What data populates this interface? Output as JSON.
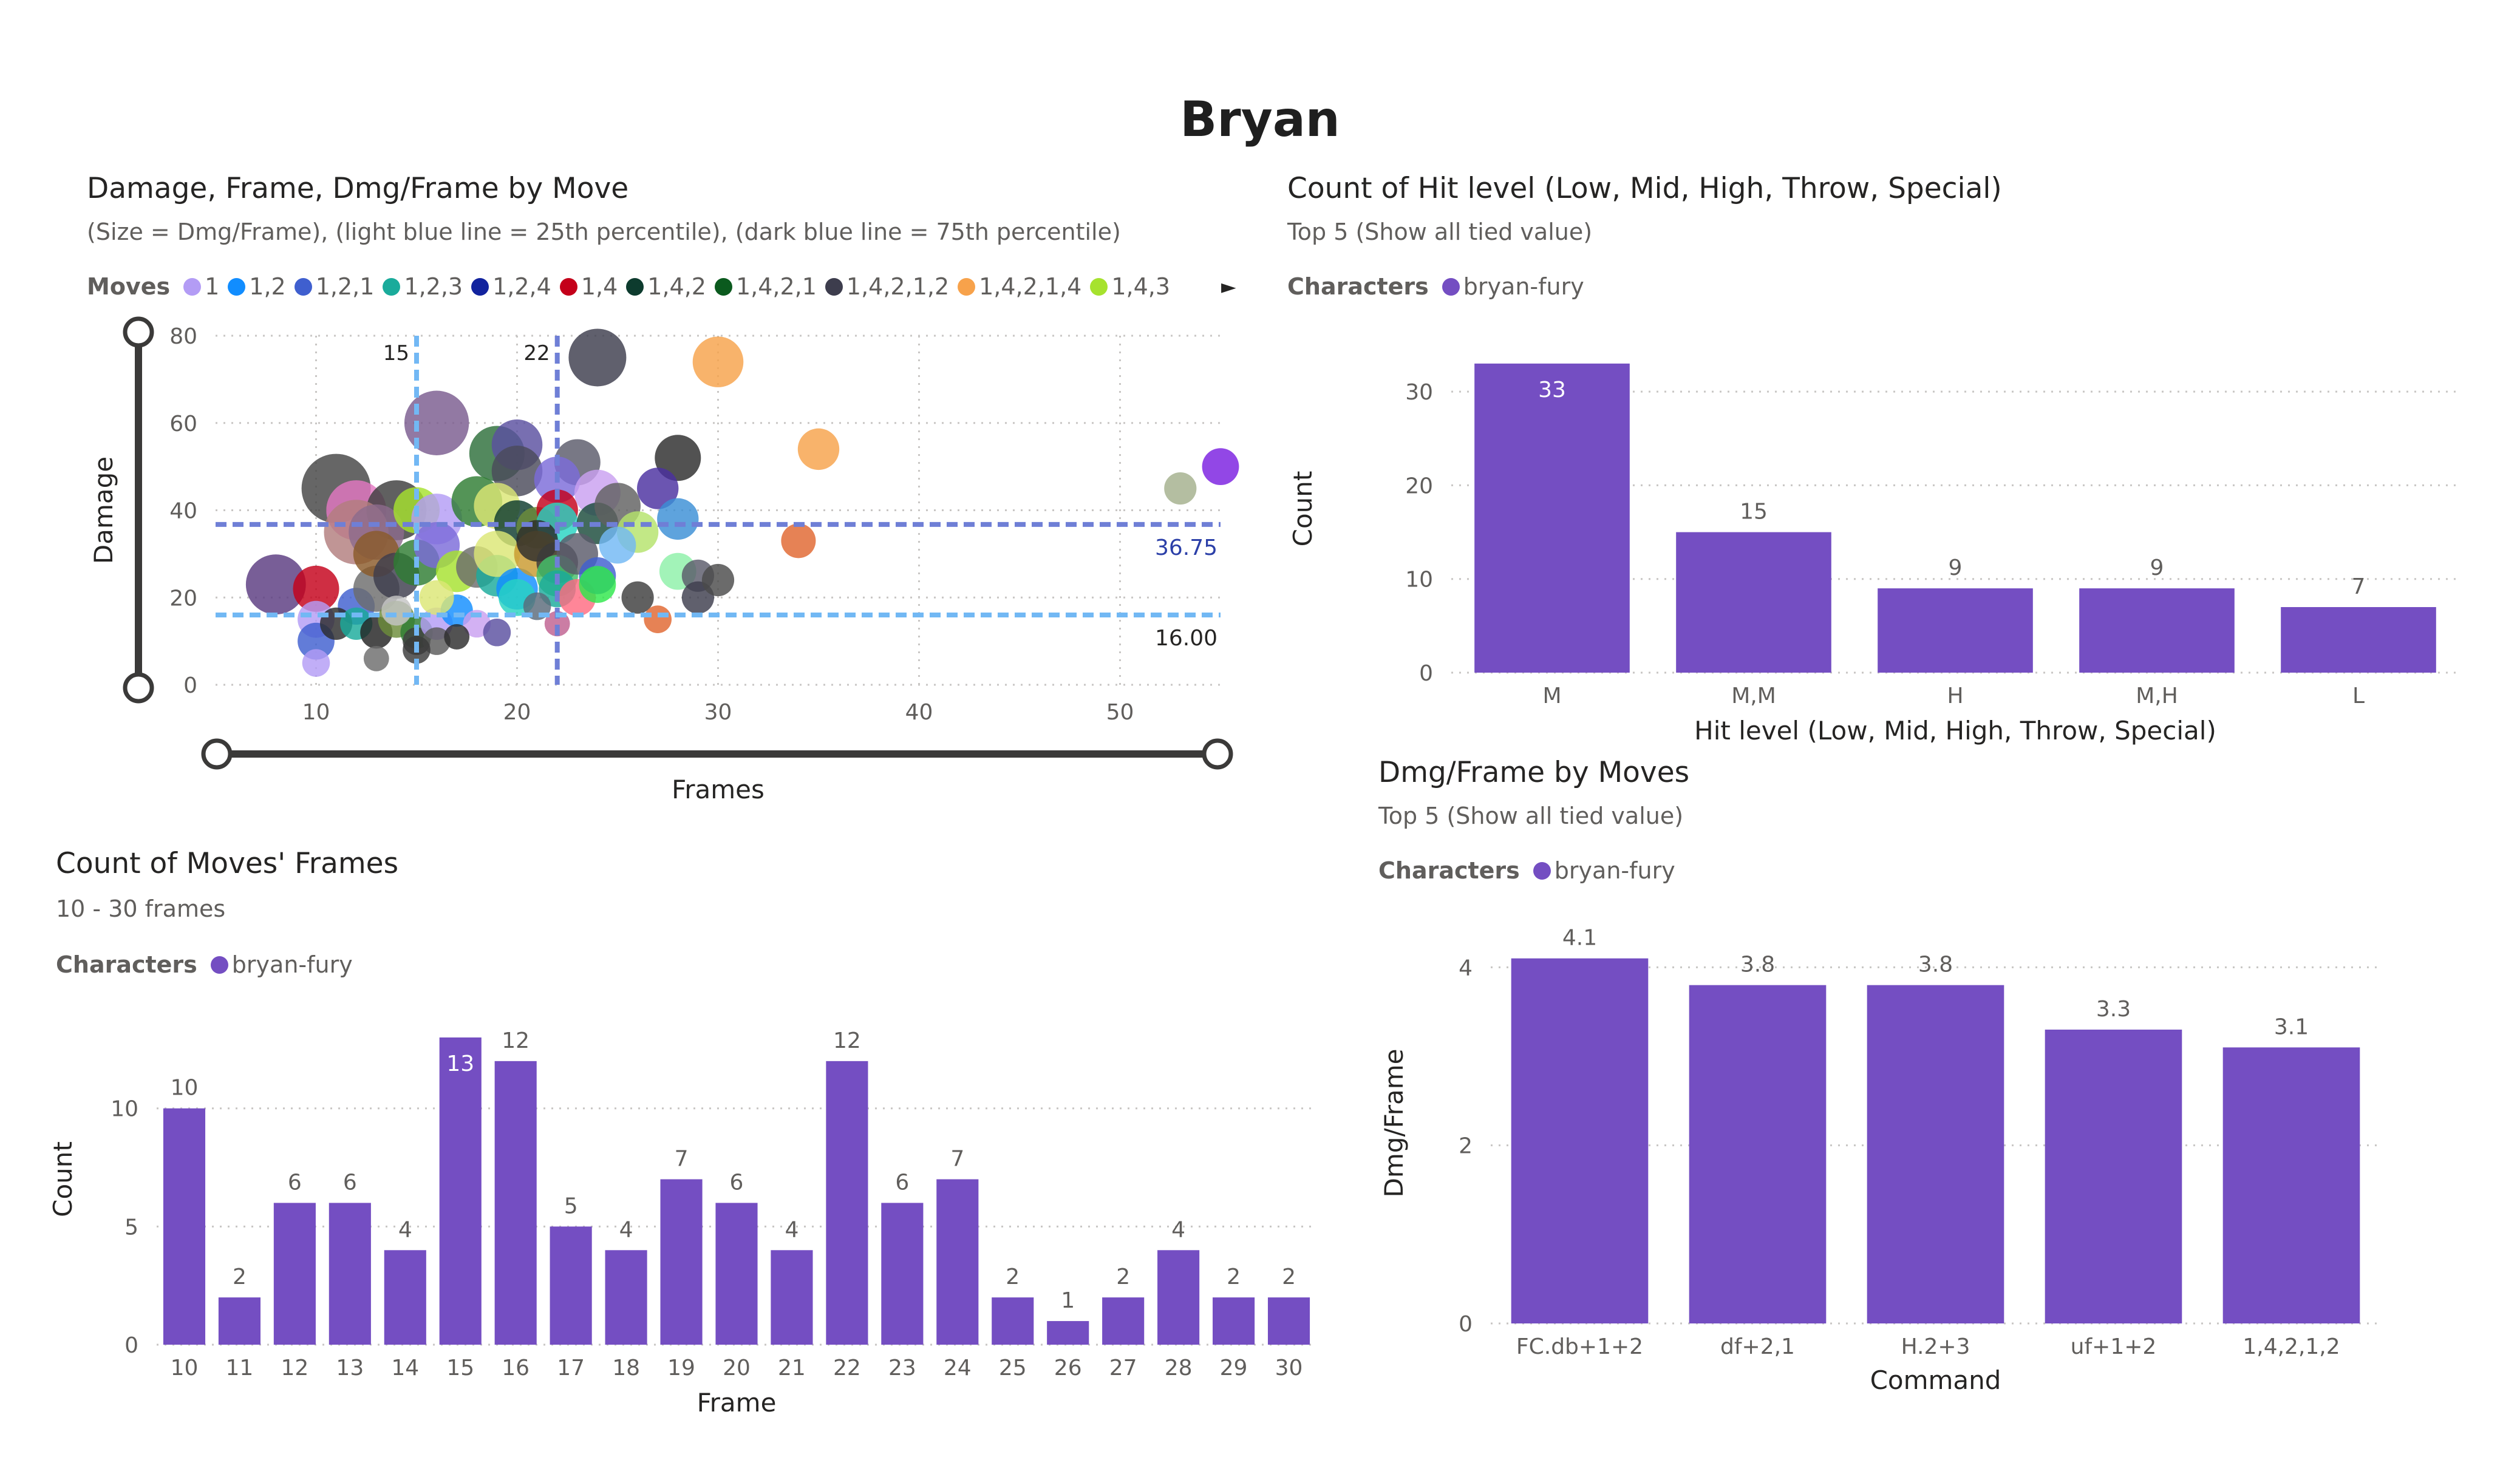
{
  "page": {
    "title": "Bryan"
  },
  "scatter": {
    "title": "Damage, Frame, Dmg/Frame by Move",
    "subtitle": "(Size = Dmg/Frame), (light blue line = 25th percentile), (dark blue line = 75th percentile)",
    "legend_title": "Moves",
    "legend": [
      {
        "name": "1",
        "color": "#b39cf5"
      },
      {
        "name": "1,2",
        "color": "#118dff"
      },
      {
        "name": "1,2,1",
        "color": "#3f5fcf"
      },
      {
        "name": "1,2,3",
        "color": "#1aab9b"
      },
      {
        "name": "1,2,4",
        "color": "#12239e"
      },
      {
        "name": "1,4",
        "color": "#c4001a"
      },
      {
        "name": "1,4,2",
        "color": "#0d3b2e"
      },
      {
        "name": "1,4,2,1",
        "color": "#0b5a1e"
      },
      {
        "name": "1,4,2,1,2",
        "color": "#3d3d4d"
      },
      {
        "name": "1,4,2,1,4",
        "color": "#f7a24b"
      },
      {
        "name": "1,4,3",
        "color": "#a6e22e"
      }
    ],
    "legend_more_icon": "chevron-right-icon",
    "slider_y_icon": "range-slider-icon",
    "slider_x_icon": "range-slider-icon"
  },
  "hit_level": {
    "title": "Count of Hit level (Low, Mid, High, Throw, Special)",
    "subtitle": "Top 5 (Show all tied value)",
    "legend_title": "Characters",
    "legend_item": "bryan-fury"
  },
  "frames": {
    "title": "Count of Moves' Frames",
    "subtitle": "10 - 30 frames",
    "legend_title": "Characters",
    "legend_item": "bryan-fury"
  },
  "dmgframe": {
    "title": "Dmg/Frame by Moves",
    "subtitle": "Top 5 (Show all tied value)",
    "legend_title": "Characters",
    "legend_item": "bryan-fury"
  },
  "chart_data": [
    {
      "type": "scatter",
      "xlabel": "Frames",
      "ylabel": "Damage",
      "xlim": [
        5,
        55
      ],
      "ylim": [
        0,
        80
      ],
      "x_ticks": [
        10,
        20,
        30,
        40,
        50
      ],
      "y_ticks": [
        0,
        20,
        40,
        60,
        80
      ],
      "grid": true,
      "reference_lines": [
        {
          "axis": "x",
          "value": 15,
          "label": "15",
          "color": "#72b8f4"
        },
        {
          "axis": "x",
          "value": 22,
          "label": "22",
          "color": "#6f7fd6"
        },
        {
          "axis": "y",
          "value": 36.75,
          "label": "36.75",
          "color": "#6f7fd6"
        },
        {
          "axis": "y",
          "value": 16,
          "label": "16.00",
          "color": "#72b8f4"
        }
      ],
      "points": [
        {
          "x": 24,
          "y": 75,
          "color": "#3d3d4d",
          "r": 1.25
        },
        {
          "x": 30,
          "y": 74,
          "color": "#f7a24b",
          "r": 1.1
        },
        {
          "x": 55,
          "y": 50,
          "color": "#7a1fe0",
          "r": 0.8
        },
        {
          "x": 16,
          "y": 60,
          "color": "#7a5c8f",
          "r": 1.4
        },
        {
          "x": 19,
          "y": 53,
          "color": "#2d6f3a",
          "r": 1.2
        },
        {
          "x": 20,
          "y": 55,
          "color": "#5a4fa0",
          "r": 1.1
        },
        {
          "x": 20,
          "y": 49,
          "color": "#4a4a5a",
          "r": 1.1
        },
        {
          "x": 28,
          "y": 52,
          "color": "#2c2c2c",
          "r": 1.0
        },
        {
          "x": 35,
          "y": 54,
          "color": "#f7a24b",
          "r": 0.9
        },
        {
          "x": 23,
          "y": 51,
          "color": "#5a5a6a",
          "r": 1.0
        },
        {
          "x": 22,
          "y": 47,
          "color": "#7b6bd9",
          "r": 1.0
        },
        {
          "x": 11,
          "y": 45,
          "color": "#444444",
          "r": 1.5
        },
        {
          "x": 12,
          "y": 40,
          "color": "#e377c2",
          "r": 1.3
        },
        {
          "x": 14,
          "y": 40,
          "color": "#3d3d3d",
          "r": 1.3
        },
        {
          "x": 12,
          "y": 35,
          "color": "#b27e7e",
          "r": 1.4
        },
        {
          "x": 13,
          "y": 35,
          "color": "#8c6b8c",
          "r": 1.2
        },
        {
          "x": 15,
          "y": 40,
          "color": "#a6e22e",
          "r": 1.0
        },
        {
          "x": 16,
          "y": 38,
          "color": "#b39cf5",
          "r": 1.1
        },
        {
          "x": 18,
          "y": 42,
          "color": "#2e7d32",
          "r": 1.1
        },
        {
          "x": 19,
          "y": 41,
          "color": "#dce775",
          "r": 1.0
        },
        {
          "x": 20,
          "y": 37,
          "color": "#0d3b2e",
          "r": 1.0
        },
        {
          "x": 21,
          "y": 36,
          "color": "#6d8c3a",
          "r": 0.9
        },
        {
          "x": 22,
          "y": 40,
          "color": "#c4001a",
          "r": 0.9
        },
        {
          "x": 22,
          "y": 37,
          "color": "#27d3c2",
          "r": 0.9
        },
        {
          "x": 24,
          "y": 44,
          "color": "#c9a0f0",
          "r": 1.0
        },
        {
          "x": 24,
          "y": 37,
          "color": "#1a4a3a",
          "r": 0.9
        },
        {
          "x": 25,
          "y": 41,
          "color": "#606060",
          "r": 1.0
        },
        {
          "x": 26,
          "y": 35,
          "color": "#b5e36b",
          "r": 0.9
        },
        {
          "x": 27,
          "y": 45,
          "color": "#4b2fa0",
          "r": 0.9
        },
        {
          "x": 28,
          "y": 38,
          "color": "#3a8fd6",
          "r": 0.9
        },
        {
          "x": 34,
          "y": 33,
          "color": "#e0662f",
          "r": 0.75
        },
        {
          "x": 53,
          "y": 45,
          "color": "#a3b08c",
          "r": 0.7
        },
        {
          "x": 8,
          "y": 23,
          "color": "#5a3a80",
          "r": 1.3
        },
        {
          "x": 10,
          "y": 22,
          "color": "#c4001a",
          "r": 1.0
        },
        {
          "x": 10,
          "y": 15,
          "color": "#b39cf5",
          "r": 0.8
        },
        {
          "x": 10,
          "y": 10,
          "color": "#3f5fcf",
          "r": 0.8
        },
        {
          "x": 10,
          "y": 5,
          "color": "#b39cf5",
          "r": 0.6
        },
        {
          "x": 12,
          "y": 18,
          "color": "#3f5fcf",
          "r": 0.8
        },
        {
          "x": 13,
          "y": 22,
          "color": "#6d6d6d",
          "r": 1.0
        },
        {
          "x": 13,
          "y": 30,
          "color": "#8a5a2a",
          "r": 1.0
        },
        {
          "x": 14,
          "y": 25,
          "color": "#3d3d4d",
          "r": 1.0
        },
        {
          "x": 15,
          "y": 28,
          "color": "#2e7d32",
          "r": 1.0
        },
        {
          "x": 16,
          "y": 32,
          "color": "#7b6bd9",
          "r": 1.0
        },
        {
          "x": 17,
          "y": 26,
          "color": "#a6e22e",
          "r": 0.9
        },
        {
          "x": 18,
          "y": 27,
          "color": "#6d6d6d",
          "r": 0.9
        },
        {
          "x": 19,
          "y": 25,
          "color": "#1aab9b",
          "r": 0.9
        },
        {
          "x": 19,
          "y": 30,
          "color": "#dce775",
          "r": 1.0
        },
        {
          "x": 20,
          "y": 22,
          "color": "#118dff",
          "r": 0.9
        },
        {
          "x": 20,
          "y": 20,
          "color": "#27d3c2",
          "r": 0.8
        },
        {
          "x": 21,
          "y": 30,
          "color": "#c99a2e",
          "r": 1.0
        },
        {
          "x": 21,
          "y": 33,
          "color": "#2c2c2c",
          "r": 0.9
        },
        {
          "x": 22,
          "y": 28,
          "color": "#3a3a3a",
          "r": 0.9
        },
        {
          "x": 22,
          "y": 25,
          "color": "#43c06a",
          "r": 0.9
        },
        {
          "x": 22,
          "y": 22,
          "color": "#1aab9b",
          "r": 0.8
        },
        {
          "x": 23,
          "y": 30,
          "color": "#5a5a6a",
          "r": 0.9
        },
        {
          "x": 23,
          "y": 20,
          "color": "#ff6b81",
          "r": 0.8
        },
        {
          "x": 24,
          "y": 25,
          "color": "#3f5fcf",
          "r": 0.8
        },
        {
          "x": 24,
          "y": 23,
          "color": "#2ee84a",
          "r": 0.8
        },
        {
          "x": 25,
          "y": 32,
          "color": "#72b8f4",
          "r": 0.8
        },
        {
          "x": 26,
          "y": 20,
          "color": "#3d3d3d",
          "r": 0.7
        },
        {
          "x": 27,
          "y": 15,
          "color": "#e0662f",
          "r": 0.6
        },
        {
          "x": 28,
          "y": 26,
          "color": "#8ef0a8",
          "r": 0.8
        },
        {
          "x": 29,
          "y": 25,
          "color": "#5a5a6a",
          "r": 0.7
        },
        {
          "x": 29,
          "y": 20,
          "color": "#3d3d4d",
          "r": 0.7
        },
        {
          "x": 30,
          "y": 24,
          "color": "#4a4a4a",
          "r": 0.7
        },
        {
          "x": 11,
          "y": 14,
          "color": "#2c2c2c",
          "r": 0.7
        },
        {
          "x": 12,
          "y": 14,
          "color": "#1aab9b",
          "r": 0.7
        },
        {
          "x": 13,
          "y": 12,
          "color": "#222222",
          "r": 0.7
        },
        {
          "x": 14,
          "y": 15,
          "color": "#6d8c3a",
          "r": 0.8
        },
        {
          "x": 15,
          "y": 12,
          "color": "#2e7d32",
          "r": 0.7
        },
        {
          "x": 15,
          "y": 10,
          "color": "#3d3d3d",
          "r": 0.6
        },
        {
          "x": 16,
          "y": 14,
          "color": "#b39cf5",
          "r": 0.7
        },
        {
          "x": 16,
          "y": 10,
          "color": "#5a5a5a",
          "r": 0.6
        },
        {
          "x": 17,
          "y": 17,
          "color": "#118dff",
          "r": 0.7
        },
        {
          "x": 18,
          "y": 14,
          "color": "#c9a0f0",
          "r": 0.6
        },
        {
          "x": 19,
          "y": 12,
          "color": "#5a4fa0",
          "r": 0.6
        },
        {
          "x": 15,
          "y": 8,
          "color": "#3a3a3a",
          "r": 0.6
        },
        {
          "x": 13,
          "y": 6,
          "color": "#6d6d6d",
          "r": 0.55
        },
        {
          "x": 14,
          "y": 17,
          "color": "#c4c4c4",
          "r": 0.65
        },
        {
          "x": 17,
          "y": 11,
          "color": "#2c2c2c",
          "r": 0.55
        },
        {
          "x": 21,
          "y": 18,
          "color": "#5a6a7a",
          "r": 0.6
        },
        {
          "x": 22,
          "y": 14,
          "color": "#c06090",
          "r": 0.55
        },
        {
          "x": 16,
          "y": 20,
          "color": "#dce775",
          "r": 0.75
        }
      ]
    },
    {
      "type": "bar",
      "categories": [
        "M",
        "M,M",
        "H",
        "M,H",
        "L"
      ],
      "values": [
        33,
        15,
        9,
        9,
        7
      ],
      "xlabel": "Hit level (Low, Mid, High, Throw, Special)",
      "ylabel": "Count",
      "ylim": [
        0,
        35
      ],
      "y_ticks": [
        0,
        10,
        20,
        30
      ],
      "bar_color": "#744ec2",
      "legend": [
        "bryan-fury"
      ]
    },
    {
      "type": "bar",
      "categories": [
        "10",
        "11",
        "12",
        "13",
        "14",
        "15",
        "16",
        "17",
        "18",
        "19",
        "20",
        "21",
        "22",
        "23",
        "24",
        "25",
        "26",
        "27",
        "28",
        "29",
        "30"
      ],
      "values": [
        10,
        2,
        6,
        6,
        4,
        13,
        12,
        5,
        4,
        7,
        6,
        4,
        12,
        6,
        7,
        2,
        1,
        2,
        4,
        2,
        2
      ],
      "xlabel": "Frame",
      "ylabel": "Count",
      "ylim": [
        0,
        14
      ],
      "y_ticks": [
        0,
        5,
        10
      ],
      "bar_color": "#744ec2",
      "legend": [
        "bryan-fury"
      ]
    },
    {
      "type": "bar",
      "categories": [
        "FC.db+1+2",
        "df+2,1",
        "H.2+3",
        "uf+1+2",
        "1,4,2,1,2"
      ],
      "values": [
        4.1,
        3.8,
        3.8,
        3.3,
        3.1
      ],
      "xlabel": "Command",
      "ylabel": "Dmg/Frame",
      "ylim": [
        0,
        4.5
      ],
      "y_ticks": [
        0,
        2,
        4
      ],
      "bar_color": "#744ec2",
      "legend": [
        "bryan-fury"
      ]
    }
  ]
}
